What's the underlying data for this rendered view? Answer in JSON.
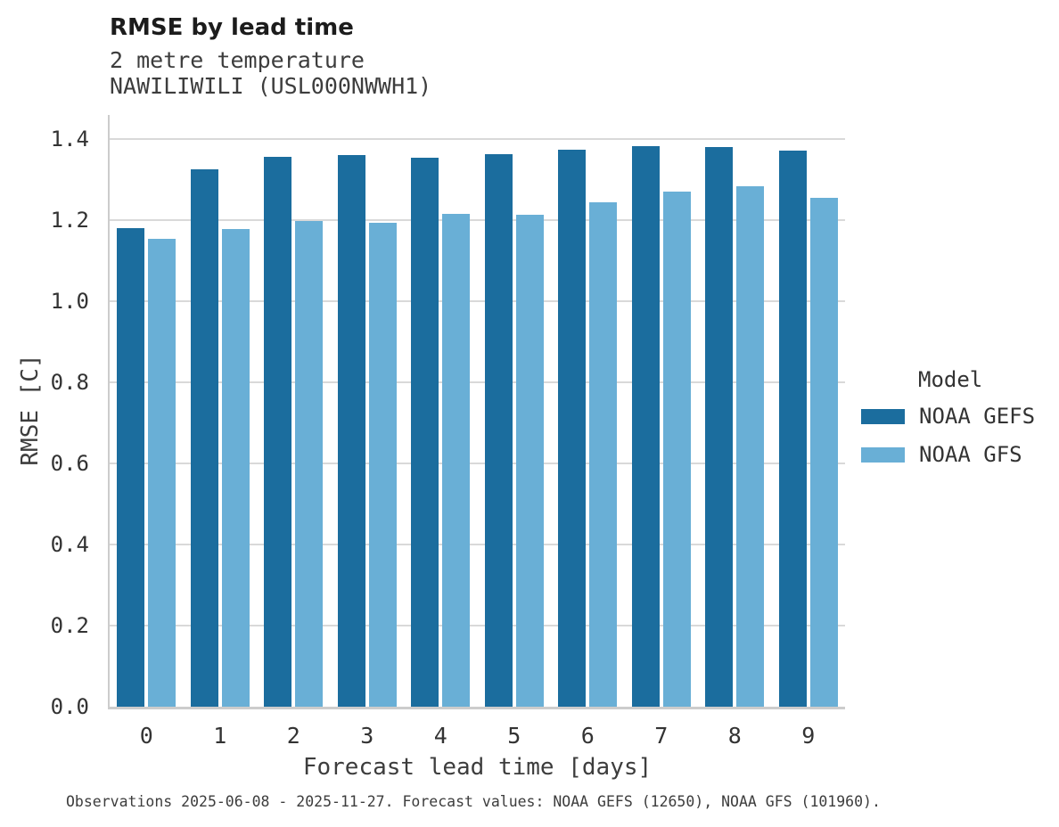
{
  "header": {
    "title": "RMSE by lead time",
    "subtitle_line1": "2 metre temperature",
    "subtitle_line2": "NAWILIWILI (USL000NWWH1)"
  },
  "chart_data": {
    "type": "bar",
    "title": "RMSE by lead time",
    "subtitle": [
      "2 metre temperature",
      "NAWILIWILI (USL000NWWH1)"
    ],
    "categories": [
      "0",
      "1",
      "2",
      "3",
      "4",
      "5",
      "6",
      "7",
      "8",
      "9"
    ],
    "series": [
      {
        "name": "NOAA GEFS",
        "color": "#1B6D9E",
        "values": [
          1.181,
          1.325,
          1.356,
          1.361,
          1.355,
          1.363,
          1.374,
          1.382,
          1.38,
          1.371
        ]
      },
      {
        "name": "NOAA GFS",
        "color": "#69AFD6",
        "values": [
          1.154,
          1.178,
          1.198,
          1.195,
          1.216,
          1.214,
          1.244,
          1.27,
          1.283,
          1.255
        ]
      }
    ],
    "xlabel": "Forecast lead time [days]",
    "ylabel": "RMSE [C]",
    "ylim": [
      0,
      1.46
    ],
    "yticks": [
      0.0,
      0.2,
      0.4,
      0.6,
      0.8,
      1.0,
      1.2,
      1.4
    ],
    "grid": true,
    "legend_title": "Model",
    "legend_position": "right",
    "gridline_color": "#D9D9D9",
    "spine_color": "#CCCCCC"
  },
  "footer": {
    "caption": "Observations 2025-06-08 - 2025-11-27. Forecast values: NOAA GEFS (12650), NOAA GFS (101960)."
  }
}
